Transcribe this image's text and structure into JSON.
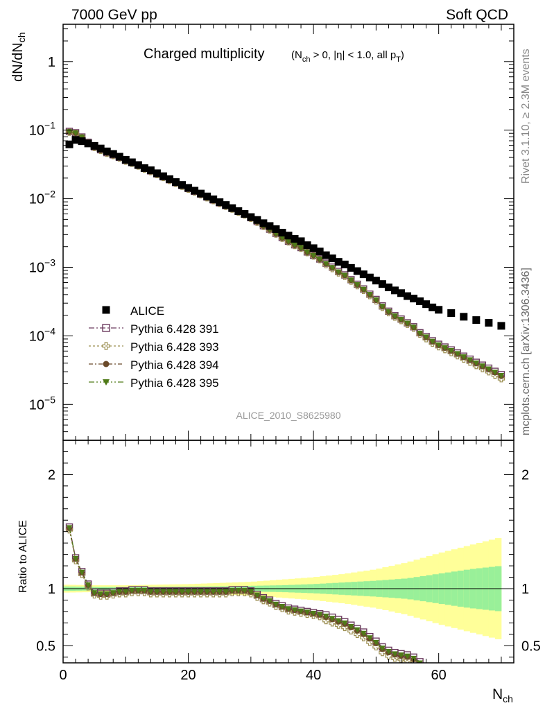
{
  "header": {
    "left": "7000 GeV pp",
    "right": "Soft QCD"
  },
  "side": {
    "rivet": "Rivet 3.1.10, ≥ 2.3M events",
    "mcplots": "mcplots.cern.ch [arXiv:1306.3436]"
  },
  "analysis_id": "ALICE_2010_S8625980",
  "chart_data": {
    "type": "scatter",
    "title": "Charged multiplicity",
    "title_cuts": "(N_ch > 0, |η| < 1.0, all p_T)",
    "ylabel": "dN/dN_ch",
    "xlabel": "N_ch",
    "ratio_ylabel": "Ratio to ALICE",
    "xlim": [
      0,
      72
    ],
    "ylim": [
      3e-06,
      3.5
    ],
    "yscale": "log",
    "ratio_ylim": [
      0.35,
      2.3
    ],
    "xticks": [
      "0",
      "20",
      "40",
      "60"
    ],
    "yticks_main": [
      "10^-5",
      "10^-4",
      "10^-3",
      "10^-2",
      "10^-1",
      "1"
    ],
    "yticks_ratio": [
      "0.5",
      "1",
      "2"
    ],
    "legend_position": "lower-left",
    "colors": {
      "alice": "#000000",
      "py391": "#6b3a5e",
      "py393": "#9c8f52",
      "py394": "#6b4a2a",
      "py395": "#4f7a18",
      "band_inner": "#99f099",
      "band_outer": "#ffff99"
    },
    "alice": {
      "name": "ALICE",
      "x": [
        1,
        2,
        3,
        4,
        5,
        6,
        7,
        8,
        9,
        10,
        11,
        12,
        13,
        14,
        15,
        16,
        17,
        18,
        19,
        20,
        21,
        22,
        23,
        24,
        25,
        26,
        27,
        28,
        29,
        30,
        31,
        32,
        33,
        34,
        35,
        36,
        37,
        38,
        39,
        40,
        41,
        42,
        43,
        44,
        45,
        46,
        47,
        48,
        49,
        50,
        51,
        52,
        53,
        54,
        55,
        56,
        57,
        58,
        59,
        60,
        62,
        64,
        66,
        68,
        70
      ],
      "y": [
        0.062,
        0.072,
        0.069,
        0.064,
        0.059,
        0.054,
        0.049,
        0.045,
        0.041,
        0.037,
        0.034,
        0.031,
        0.028,
        0.026,
        0.0235,
        0.0213,
        0.0193,
        0.0175,
        0.0159,
        0.0144,
        0.0131,
        0.0119,
        0.0108,
        0.0098,
        0.0089,
        0.0081,
        0.0073,
        0.0066,
        0.006,
        0.0054,
        0.0049,
        0.0044,
        0.004,
        0.0036,
        0.0032,
        0.0029,
        0.0026,
        0.0024,
        0.0021,
        0.0019,
        0.0017,
        0.0015,
        0.00135,
        0.0012,
        0.0011,
        0.00098,
        0.00088,
        0.00079,
        0.00071,
        0.00064,
        0.00057,
        0.00051,
        0.00046,
        0.00042,
        0.00038,
        0.00035,
        0.00032,
        0.00029,
        0.00026,
        0.00024,
        0.000215,
        0.00019,
        0.00017,
        0.000155,
        0.00014
      ]
    },
    "pythia_series": [
      {
        "name": "Pythia 6.428 391",
        "key": "py391",
        "marker": "open-square",
        "dash": "8,3,2,3"
      },
      {
        "name": "Pythia 6.428 393",
        "key": "py393",
        "marker": "open-cross",
        "dash": "3,3"
      },
      {
        "name": "Pythia 6.428 394",
        "key": "py394",
        "marker": "circle",
        "dash": "6,3,2,3"
      },
      {
        "name": "Pythia 6.428 395",
        "key": "py395",
        "marker": "triangle-down",
        "dash": "8,3,2,3,2,3"
      }
    ],
    "ratio_x": [
      1,
      2,
      3,
      4,
      5,
      6,
      7,
      8,
      9,
      10,
      11,
      12,
      13,
      14,
      15,
      16,
      17,
      18,
      19,
      20,
      21,
      22,
      23,
      24,
      25,
      26,
      27,
      28,
      29,
      30,
      31,
      32,
      33,
      34,
      35,
      36,
      37,
      38,
      39,
      40,
      41,
      42,
      43,
      44,
      45,
      46,
      47,
      48,
      49,
      50,
      51,
      52,
      53,
      54,
      55,
      56,
      57
    ],
    "ratio_y": [
      1.53,
      1.26,
      1.14,
      1.03,
      0.96,
      0.95,
      0.95,
      0.96,
      0.97,
      0.97,
      0.98,
      0.98,
      0.98,
      0.97,
      0.97,
      0.97,
      0.97,
      0.97,
      0.97,
      0.97,
      0.97,
      0.97,
      0.97,
      0.97,
      0.97,
      0.97,
      0.98,
      0.98,
      0.98,
      0.97,
      0.94,
      0.91,
      0.89,
      0.86,
      0.84,
      0.82,
      0.81,
      0.8,
      0.79,
      0.78,
      0.77,
      0.75,
      0.73,
      0.71,
      0.69,
      0.66,
      0.63,
      0.6,
      0.56,
      0.52,
      0.47,
      0.44,
      0.42,
      0.41,
      0.4,
      0.38,
      0.34
    ],
    "band_x": [
      0,
      5,
      10,
      15,
      20,
      25,
      30,
      35,
      40,
      45,
      50,
      55,
      60,
      65,
      70
    ],
    "band_inner": [
      0.02,
      0.015,
      0.015,
      0.016,
      0.018,
      0.02,
      0.025,
      0.03,
      0.04,
      0.055,
      0.07,
      0.09,
      0.13,
      0.17,
      0.2
    ],
    "band_outer": [
      0.035,
      0.03,
      0.03,
      0.035,
      0.04,
      0.05,
      0.06,
      0.08,
      0.1,
      0.13,
      0.17,
      0.23,
      0.31,
      0.38,
      0.45
    ]
  }
}
